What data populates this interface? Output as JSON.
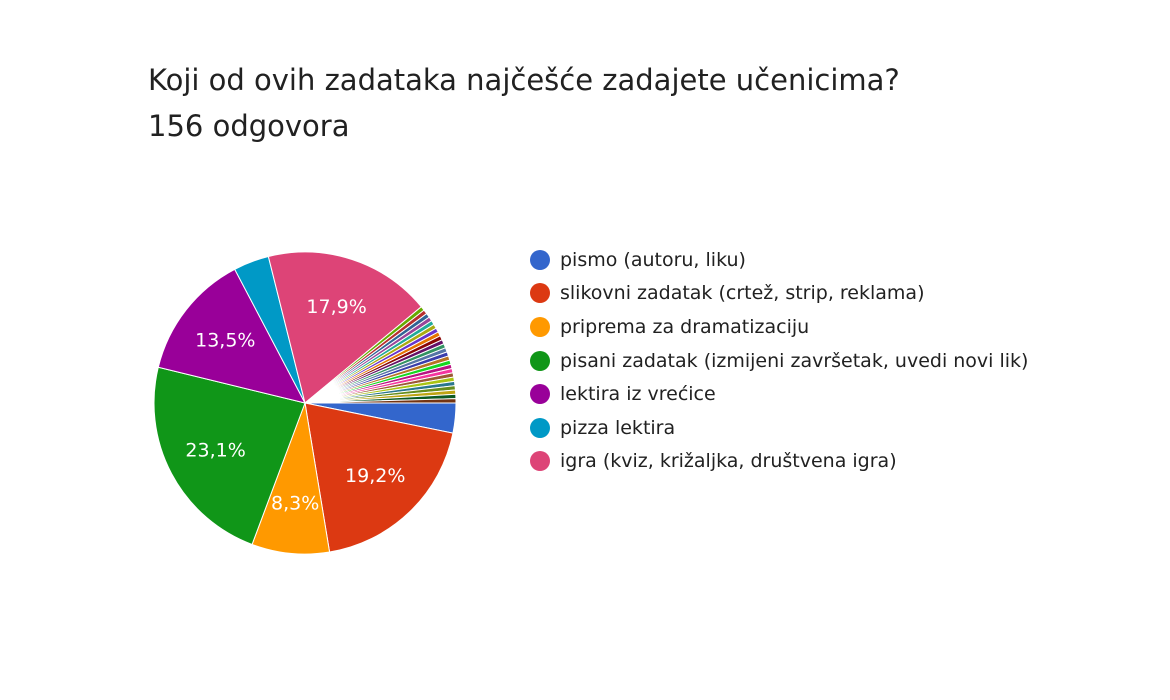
{
  "chart_data": {
    "type": "pie",
    "title": "Koji od ovih zadataka najčešće zadajete učenicima?",
    "subtitle": "156 odgovora",
    "legend_position": "right",
    "slices": [
      {
        "label": "pismo (autoru, liku)",
        "value": 3.2,
        "color": "#3366cc",
        "show_pct": false
      },
      {
        "label": "slikovni zadatak (crtež, strip, reklama)",
        "value": 19.2,
        "color": "#dc3912",
        "show_pct": true,
        "pct_label": "19,2%"
      },
      {
        "label": "priprema za dramatizaciju",
        "value": 8.3,
        "color": "#ff9900",
        "show_pct": true,
        "pct_label": "8,3%"
      },
      {
        "label": "pisani zadatak (izmijeni završetak, uvedi novi lik)",
        "value": 23.1,
        "color": "#109618",
        "show_pct": true,
        "pct_label": "23,1%"
      },
      {
        "label": "lektira iz vrećice",
        "value": 13.5,
        "color": "#990099",
        "show_pct": true,
        "pct_label": "13,5%"
      },
      {
        "label": "pizza lektira",
        "value": 3.8,
        "color": "#0099c6",
        "show_pct": false
      },
      {
        "label": "igra (kviz, križaljka, društvena igra)",
        "value": 17.9,
        "color": "#dd4477",
        "show_pct": true,
        "pct_label": "17,9%"
      }
    ],
    "other_slices": {
      "value": 11.0,
      "colors": [
        "#66aa00",
        "#b82e2e",
        "#316395",
        "#994499",
        "#22aa99",
        "#aaaa11",
        "#6633cc",
        "#e67300",
        "#8b0707",
        "#651067",
        "#329262",
        "#5574a6",
        "#3b3eac",
        "#b77322",
        "#16d620",
        "#b91383",
        "#f4359e",
        "#9c5935",
        "#a9c413",
        "#2a778d",
        "#668d1c",
        "#bea413",
        "#0c5922",
        "#743411"
      ]
    }
  }
}
